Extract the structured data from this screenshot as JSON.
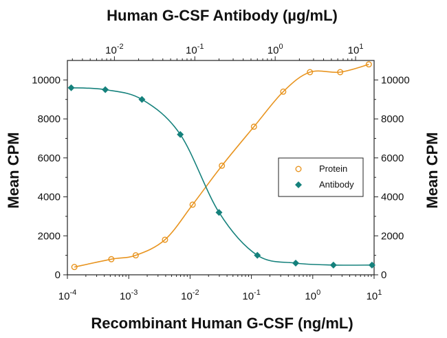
{
  "chart_data": {
    "type": "scatter",
    "title": "Human G-CSF Antibody (µg/mL)",
    "xlabel": "Recombinant Human G-CSF (ng/mL)",
    "ylabel": "Mean CPM",
    "ylabel_right": "Mean CPM",
    "x_scale": "log",
    "xlim": [
      0.0001,
      10
    ],
    "x_ticks": [
      0.0001,
      0.001,
      0.01,
      0.1,
      1,
      10
    ],
    "x_tick_bases": [
      "10",
      "10",
      "10",
      "10",
      "10",
      "10"
    ],
    "x_tick_exponents": [
      "-4",
      "-3",
      "-2",
      "-1",
      "0",
      "1"
    ],
    "top_x_scale": "log",
    "top_xlim": [
      0.0026,
      17
    ],
    "top_x_ticks": [
      0.01,
      0.1,
      1,
      10
    ],
    "top_x_tick_bases": [
      "10",
      "10",
      "10",
      "10"
    ],
    "top_x_tick_exponents": [
      "-2",
      "-1",
      "0",
      "1"
    ],
    "ylim": [
      0,
      11000
    ],
    "y_ticks": [
      0,
      2000,
      4000,
      6000,
      8000,
      10000
    ],
    "y_tick_labels": [
      "0",
      "2000",
      "4000",
      "6000",
      "8000",
      "10000"
    ],
    "grid": false,
    "legend_position": "right",
    "series": [
      {
        "name": "Protein",
        "axis": "bottom",
        "marker": "open-circle",
        "color": "#e8941f",
        "x": [
          0.00013,
          0.00052,
          0.0013,
          0.0039,
          0.011,
          0.033,
          0.11,
          0.33,
          0.9,
          2.8,
          8.2
        ],
        "y": [
          400,
          800,
          1000,
          1800,
          3600,
          5600,
          7600,
          9400,
          10400,
          10400,
          10800
        ]
      },
      {
        "name": "Antibody",
        "axis": "top",
        "marker": "filled-diamond",
        "color": "#15817c",
        "x": [
          0.0029,
          0.0077,
          0.022,
          0.066,
          0.2,
          0.6,
          1.8,
          5.3,
          16
        ],
        "y": [
          9600,
          9500,
          9000,
          7200,
          3200,
          1000,
          600,
          500,
          500
        ]
      }
    ]
  },
  "colors": {
    "protein": "#e8941f",
    "antibody": "#15817c",
    "axis": "#222222"
  }
}
